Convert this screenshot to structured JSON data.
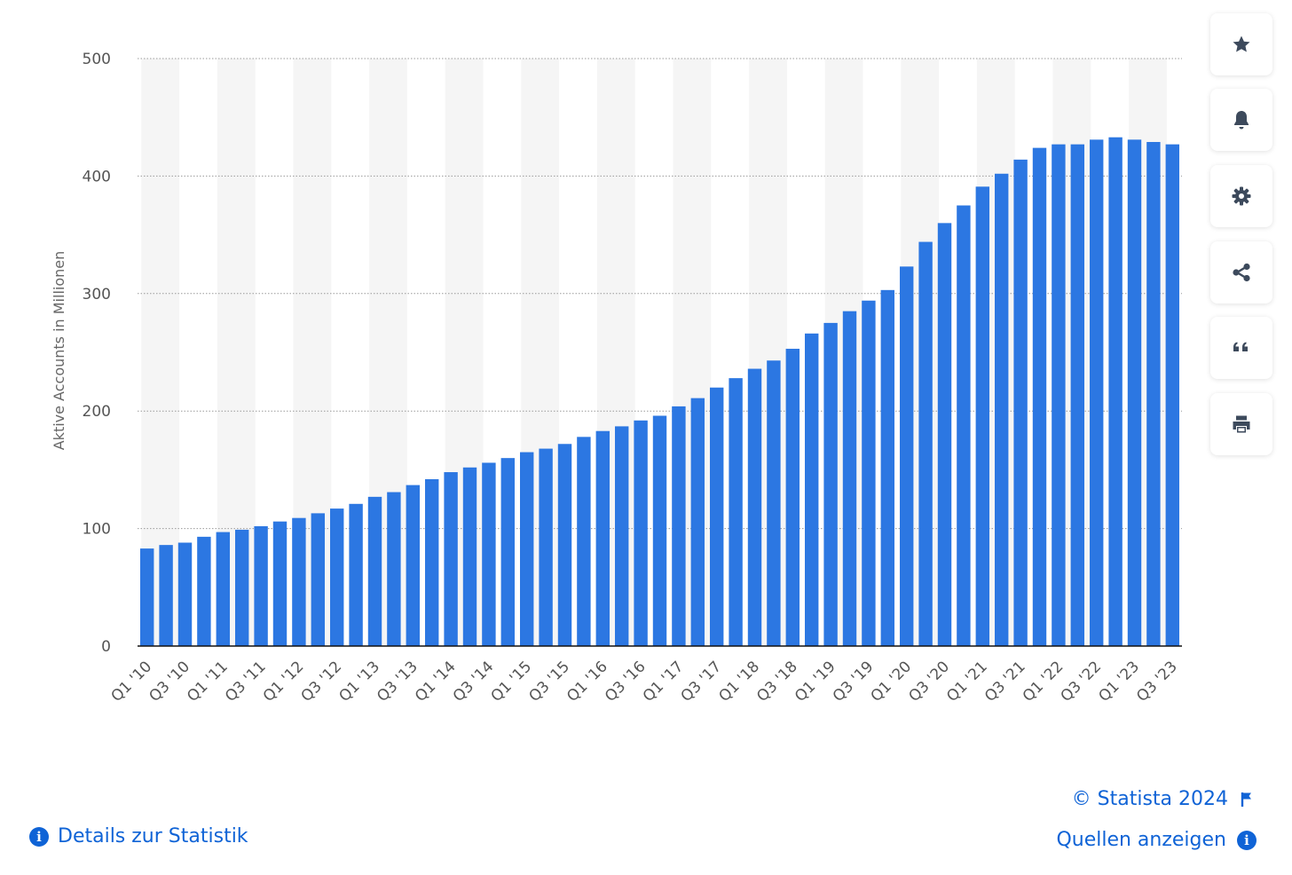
{
  "toolbar": {
    "buttons": [
      {
        "icon": "star-icon",
        "name": "favorite"
      },
      {
        "icon": "bell-icon",
        "name": "notification"
      },
      {
        "icon": "gear-icon",
        "name": "settings"
      },
      {
        "icon": "share-icon",
        "name": "share"
      },
      {
        "icon": "quote-icon",
        "name": "cite"
      },
      {
        "icon": "print-icon",
        "name": "print"
      }
    ]
  },
  "footer": {
    "details_label": "Details zur Statistik",
    "copyright": "© Statista 2024",
    "sources_label": "Quellen anzeigen"
  },
  "colors": {
    "bar": "#2c77e2",
    "link": "#0f63d6",
    "axis_text": "#555555",
    "band": "#f5f5f5",
    "icon": "#3d4a5c"
  },
  "chart_data": {
    "type": "bar",
    "title": "",
    "ylabel": "Aktive Accounts in Millionen",
    "xlabel": "",
    "ylim": [
      0,
      500
    ],
    "yticks": [
      0,
      100,
      200,
      300,
      400,
      500
    ],
    "grid": true,
    "categories": [
      "Q1 '10",
      "Q2 '10",
      "Q3 '10",
      "Q4 '10",
      "Q1 '11",
      "Q2 '11",
      "Q3 '11",
      "Q4 '11",
      "Q1 '12",
      "Q2 '12",
      "Q3 '12",
      "Q4 '12",
      "Q1 '13",
      "Q2 '13",
      "Q3 '13",
      "Q4 '13",
      "Q1 '14",
      "Q2 '14",
      "Q3 '14",
      "Q4 '14",
      "Q1 '15",
      "Q2 '15",
      "Q3 '15",
      "Q4 '15",
      "Q1 '16",
      "Q2 '16",
      "Q3 '16",
      "Q4 '16",
      "Q1 '17",
      "Q2 '17",
      "Q3 '17",
      "Q4 '17",
      "Q1 '18",
      "Q2 '18",
      "Q3 '18",
      "Q4 '18",
      "Q1 '19",
      "Q2 '19",
      "Q3 '19",
      "Q4 '19",
      "Q1 '20",
      "Q2 '20",
      "Q3 '20",
      "Q4 '20",
      "Q1 '21",
      "Q2 '21",
      "Q3 '21",
      "Q4 '21",
      "Q1 '22",
      "Q2 '22",
      "Q3 '22",
      "Q4 '22",
      "Q1 '23",
      "Q2 '23",
      "Q3 '23"
    ],
    "visible_tick_labels": [
      "Q1 '10",
      "Q3 '10",
      "Q1 '11",
      "Q3 '11",
      "Q1 '12",
      "Q3 '12",
      "Q1 '13",
      "Q3 '13",
      "Q1 '14",
      "Q3 '14",
      "Q1 '15",
      "Q3 '15",
      "Q1 '16",
      "Q3 '16",
      "Q1 '17",
      "Q3 '17",
      "Q1 '18",
      "Q3 '18",
      "Q1 '19",
      "Q3 '19",
      "Q1 '20",
      "Q3 '20",
      "Q1 '21",
      "Q3 '21",
      "Q1 '22",
      "Q3 '22",
      "Q1 '23",
      "Q3 '23"
    ],
    "values": [
      83,
      86,
      88,
      93,
      97,
      99,
      102,
      106,
      109,
      113,
      117,
      121,
      127,
      131,
      137,
      142,
      148,
      152,
      156,
      160,
      165,
      168,
      172,
      178,
      183,
      187,
      192,
      196,
      204,
      211,
      220,
      228,
      236,
      243,
      253,
      266,
      275,
      285,
      294,
      303,
      323,
      344,
      360,
      375,
      391,
      402,
      414,
      424,
      427,
      427,
      431,
      433,
      431,
      429,
      427
    ]
  }
}
